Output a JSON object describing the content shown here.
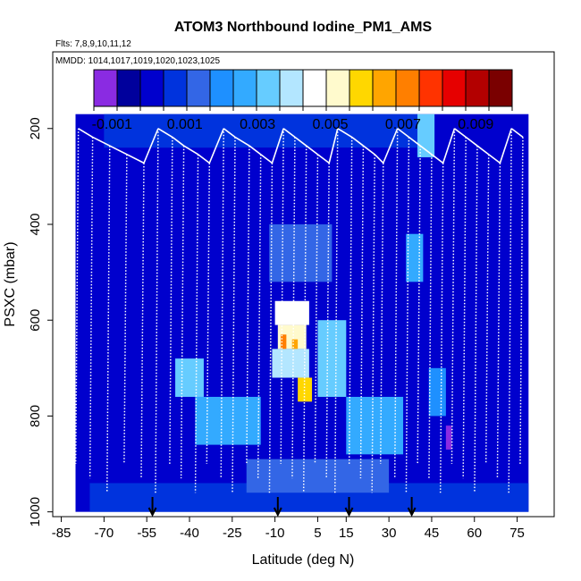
{
  "chart_data": {
    "type": "heatmap",
    "title": "ATOM3 Northbound Iodine_PM1_AMS",
    "subtitle_flights": "Flts: 7,8,9,10,11,12",
    "subtitle_dates": "MMDD: 1014,1017,1019,1020,1023,1025",
    "xlabel": "Latitude (deg N)",
    "ylabel": "PSXC (mbar)",
    "xlim": [
      -88,
      88
    ],
    "ylim_inverted": [
      1010,
      40
    ],
    "x_ticks": [
      "-85",
      "-70",
      "-55",
      "-40",
      "-25",
      "-10",
      "5",
      "15",
      "30",
      "45",
      "60",
      "75"
    ],
    "y_ticks": [
      "200",
      "400",
      "600",
      "800",
      "1000"
    ],
    "colorbar": {
      "range": [
        -0.0015,
        0.01
      ],
      "tick_labels": [
        "-0.001",
        "0.001",
        "0.003",
        "0.005",
        "0.007",
        "0.009"
      ],
      "colors": [
        "#8a2be2",
        "#00009c",
        "#0000cd",
        "#0033dd",
        "#3366e6",
        "#1e90ff",
        "#33aaff",
        "#66ccff",
        "#b3e6ff",
        "#ffffff",
        "#fffacd",
        "#ffd700",
        "#ffa500",
        "#ff7f00",
        "#ff3300",
        "#e60000",
        "#b30000",
        "#7a0000"
      ]
    },
    "profile_markers_lat": [
      -53,
      -9,
      16,
      38
    ],
    "cells": [
      {
        "lat0": -80,
        "lat1": 79,
        "p0": 170,
        "p1": 1000,
        "v": 0.0002
      },
      {
        "lat0": -70,
        "lat1": 40,
        "p0": 170,
        "p1": 240,
        "v": 0.0006
      },
      {
        "lat0": -30,
        "lat1": 35,
        "p0": 240,
        "p1": 400,
        "v": 0.0004
      },
      {
        "lat0": -12,
        "lat1": 10,
        "p0": 400,
        "p1": 520,
        "v": 0.0012
      },
      {
        "lat0": -10,
        "lat1": 2,
        "p0": 560,
        "p1": 610,
        "v": 0.0045
      },
      {
        "lat0": -9,
        "lat1": 1,
        "p0": 610,
        "p1": 660,
        "v": 0.0055
      },
      {
        "lat0": -8,
        "lat1": -6,
        "p0": 630,
        "p1": 720,
        "v": 0.0072
      },
      {
        "lat0": -4,
        "lat1": -2,
        "p0": 640,
        "p1": 700,
        "v": 0.0062
      },
      {
        "lat0": -11,
        "lat1": 2,
        "p0": 660,
        "p1": 720,
        "v": 0.0042
      },
      {
        "lat0": -2,
        "lat1": 3,
        "p0": 720,
        "p1": 770,
        "v": 0.006
      },
      {
        "lat0": 5,
        "lat1": 15,
        "p0": 600,
        "p1": 760,
        "v": 0.003
      },
      {
        "lat0": -45,
        "lat1": -35,
        "p0": 680,
        "p1": 760,
        "v": 0.0032
      },
      {
        "lat0": -38,
        "lat1": -15,
        "p0": 760,
        "p1": 860,
        "v": 0.0026
      },
      {
        "lat0": 15,
        "lat1": 35,
        "p0": 760,
        "p1": 880,
        "v": 0.0024
      },
      {
        "lat0": 36,
        "lat1": 42,
        "p0": 420,
        "p1": 520,
        "v": 0.0028
      },
      {
        "lat0": 40,
        "lat1": 46,
        "p0": 170,
        "p1": 260,
        "v": 0.003
      },
      {
        "lat0": 44,
        "lat1": 50,
        "p0": 700,
        "p1": 800,
        "v": 0.0022
      },
      {
        "lat0": 50,
        "lat1": 52,
        "p0": 820,
        "p1": 870,
        "v": -0.0012
      },
      {
        "lat0": -75,
        "lat1": 79,
        "p0": 940,
        "p1": 1000,
        "v": 0.0008
      },
      {
        "lat0": -20,
        "lat1": 30,
        "p0": 890,
        "p1": 960,
        "v": 0.0014
      }
    ]
  }
}
